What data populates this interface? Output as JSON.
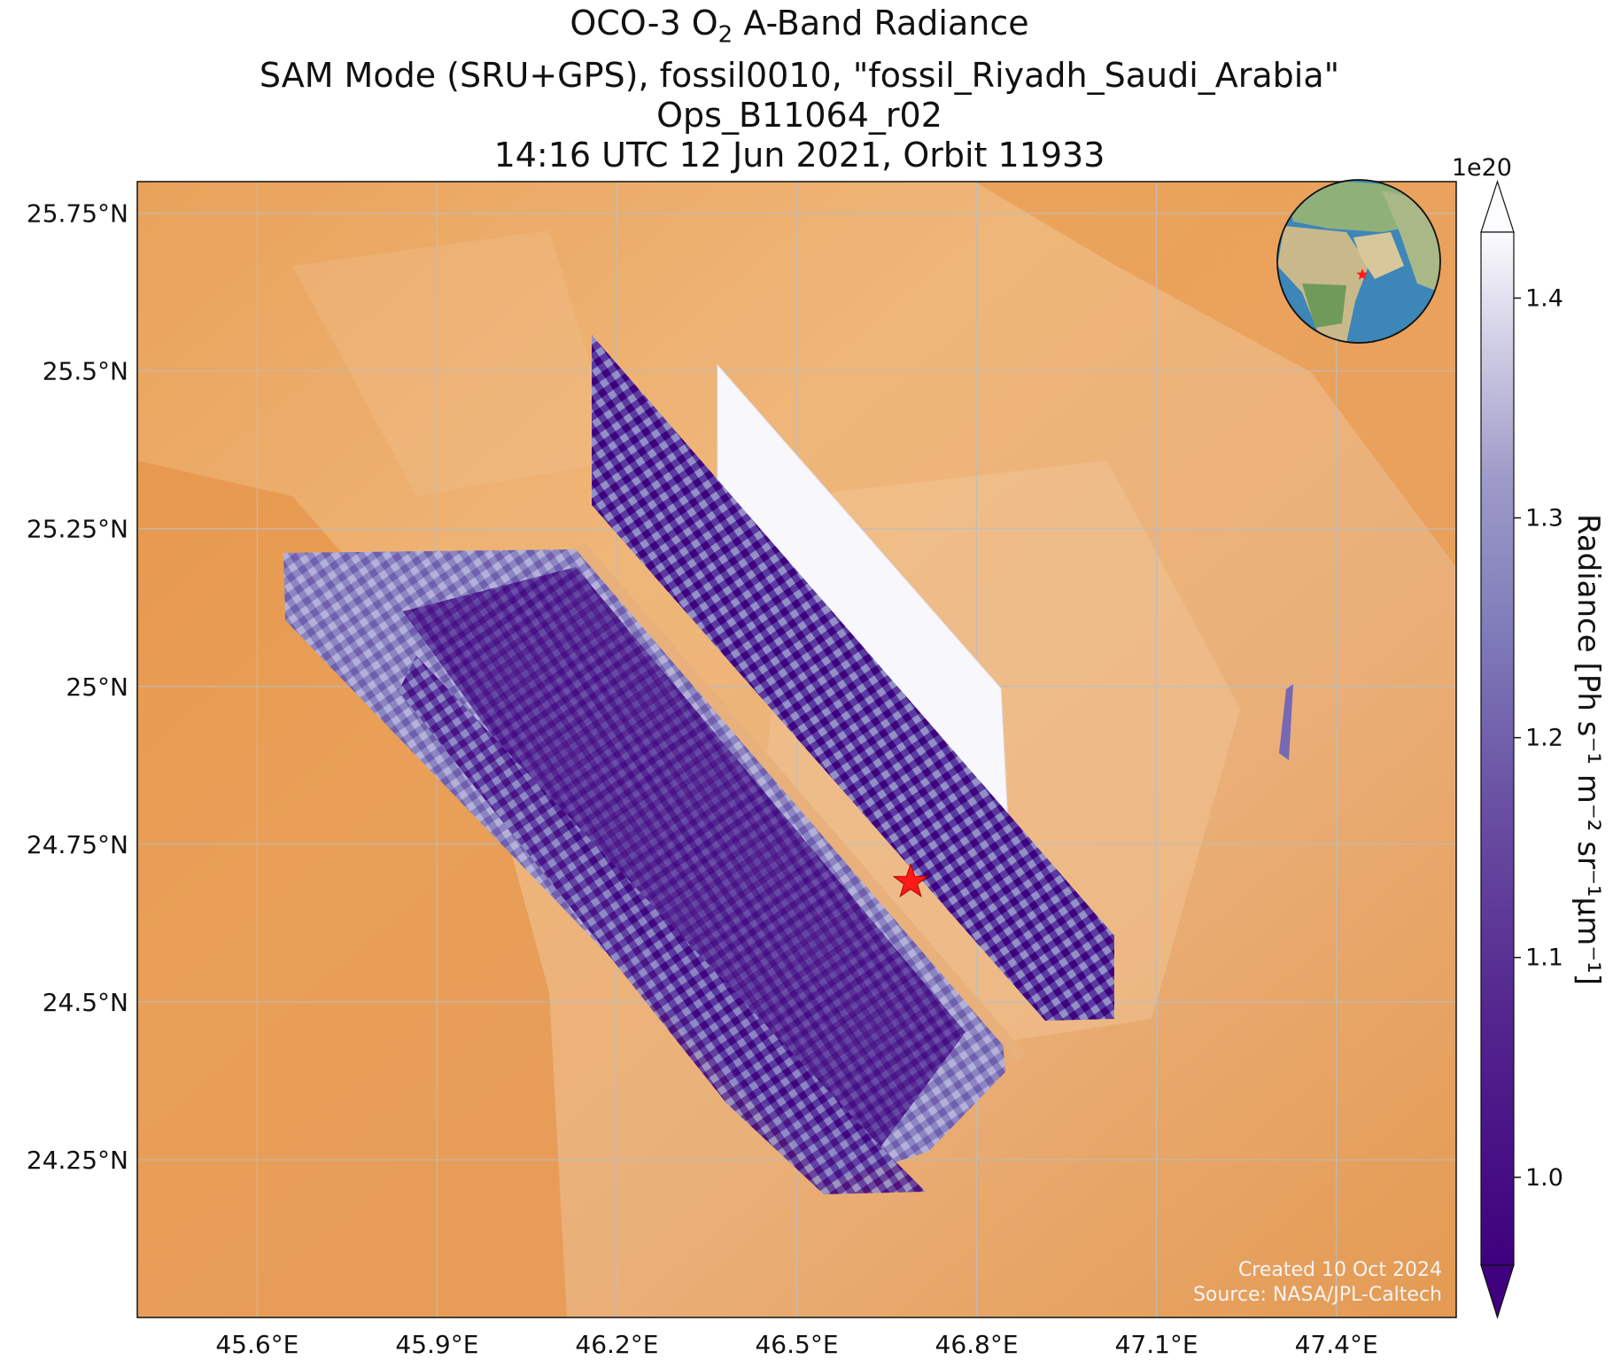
{
  "title": {
    "line1_prefix": "OCO-3 O",
    "line1_sub": "2",
    "line1_suffix": " A-Band Radiance",
    "line2": "SAM Mode (SRU+GPS), fossil0010, \"fossil_Riyadh_Saudi_Arabia\"",
    "line3": "Ops_B11064_r02",
    "line4": "14:16 UTC 12 Jun 2021, Orbit 11933"
  },
  "map": {
    "lon_range": [
      45.4,
      47.6
    ],
    "lat_range": [
      24.0,
      25.8
    ],
    "x_ticks": [
      {
        "value": 45.6,
        "label": "45.6°E"
      },
      {
        "value": 45.9,
        "label": "45.9°E"
      },
      {
        "value": 46.2,
        "label": "46.2°E"
      },
      {
        "value": 46.5,
        "label": "46.5°E"
      },
      {
        "value": 46.8,
        "label": "46.8°E"
      },
      {
        "value": 47.1,
        "label": "47.1°E"
      },
      {
        "value": 47.4,
        "label": "47.4°E"
      }
    ],
    "y_ticks": [
      {
        "value": 25.75,
        "label": "25.75°N"
      },
      {
        "value": 25.5,
        "label": "25.5°N"
      },
      {
        "value": 25.25,
        "label": "25.25°N"
      },
      {
        "value": 25.0,
        "label": "25°N"
      },
      {
        "value": 24.75,
        "label": "24.75°N"
      },
      {
        "value": 24.5,
        "label": "24.5°N"
      },
      {
        "value": 24.25,
        "label": "24.25°N"
      }
    ],
    "gridlines": true,
    "background": "satellite imagery (desert)",
    "target_marker": {
      "lon": 46.69,
      "lat": 24.69,
      "symbol": "star",
      "color": "#ff1a1a"
    },
    "inset_globe": {
      "position": "top-right",
      "marker_color": "#ff1a1a"
    }
  },
  "colorbar": {
    "label_prefix": "Radiance [Ph s",
    "label_full": "Radiance [Ph s⁻¹ m⁻² sr⁻¹μm⁻¹]",
    "multiplier": "1e20",
    "colormap": "Purples_r",
    "range": [
      0.96,
      1.43
    ],
    "extend": "both",
    "ticks": [
      {
        "value": 1.0,
        "label": "1.0"
      },
      {
        "value": 1.1,
        "label": "1.1"
      },
      {
        "value": 1.2,
        "label": "1.2"
      },
      {
        "value": 1.3,
        "label": "1.3"
      },
      {
        "value": 1.4,
        "label": "1.4"
      }
    ]
  },
  "credits": {
    "created": "Created 10 Oct 2024",
    "source": "Source: NASA/JPL-Caltech"
  },
  "colors": {
    "desert_light": "#f0b884",
    "desert_dark": "#e8913e",
    "purple_dark": "#3f007d",
    "purple_light": "#fcfbfd",
    "marker": "#ff1a1a"
  }
}
